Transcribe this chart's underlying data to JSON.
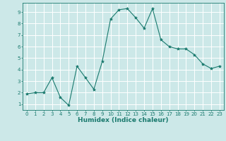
{
  "x": [
    0,
    1,
    2,
    3,
    4,
    5,
    6,
    7,
    8,
    9,
    10,
    11,
    12,
    13,
    14,
    15,
    16,
    17,
    18,
    19,
    20,
    21,
    22,
    23
  ],
  "y": [
    1.9,
    2.0,
    2.0,
    3.3,
    1.6,
    0.9,
    4.3,
    3.3,
    2.3,
    4.7,
    8.4,
    9.2,
    9.3,
    8.5,
    7.6,
    9.3,
    6.6,
    6.0,
    5.8,
    5.8,
    5.3,
    4.5,
    4.1,
    4.3
  ],
  "line_color": "#1a7a6e",
  "marker": "*",
  "marker_size": 3.0,
  "bg_color": "#cce8e8",
  "grid_color": "#ffffff",
  "xlabel": "Humidex (Indice chaleur)",
  "xlim": [
    -0.5,
    23.5
  ],
  "ylim": [
    0.5,
    9.8
  ],
  "yticks": [
    1,
    2,
    3,
    4,
    5,
    6,
    7,
    8,
    9
  ],
  "xticks": [
    0,
    1,
    2,
    3,
    4,
    5,
    6,
    7,
    8,
    9,
    10,
    11,
    12,
    13,
    14,
    15,
    16,
    17,
    18,
    19,
    20,
    21,
    22,
    23
  ],
  "tick_color": "#1a7a6e",
  "label_fontsize": 6.5,
  "tick_fontsize": 5.0
}
